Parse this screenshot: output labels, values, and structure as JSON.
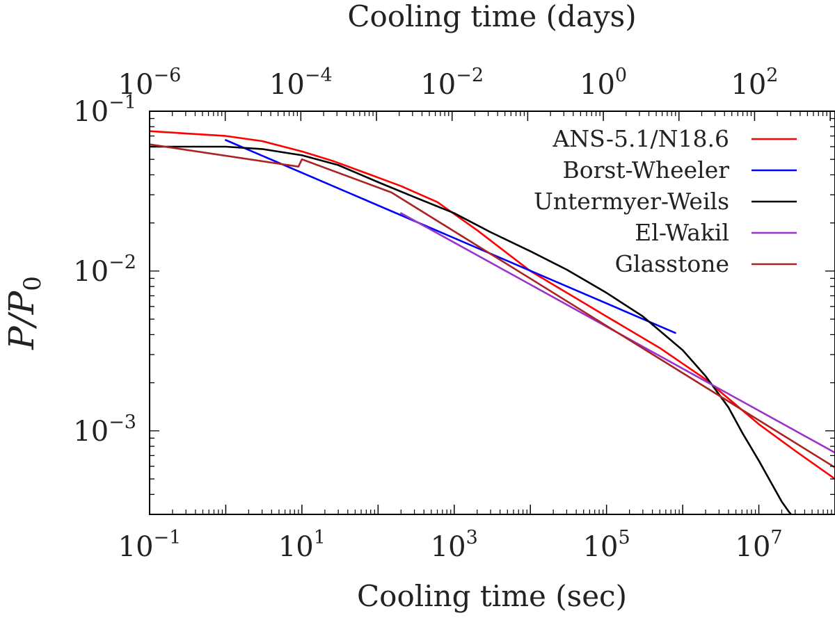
{
  "chart_data": {
    "type": "line",
    "xscale": "log",
    "yscale": "log",
    "xlabel": "Cooling time (sec)",
    "x2label": "Cooling time (days)",
    "ylabel_parts": {
      "main": "P/P",
      "sub": "0"
    },
    "xlim": [
      0.1,
      100000000
    ],
    "ylim": [
      0.0003,
      0.1
    ],
    "x2lim": [
      1e-06,
      1157
    ],
    "grid": false,
    "legend_position": "top-right",
    "xticks": [
      {
        "value": 0.1,
        "base": "10",
        "exp": "−1"
      },
      {
        "value": 10,
        "base": "10",
        "exp": "1"
      },
      {
        "value": 1000,
        "base": "10",
        "exp": "3"
      },
      {
        "value": 100000,
        "base": "10",
        "exp": "5"
      },
      {
        "value": 10000000,
        "base": "10",
        "exp": "7"
      }
    ],
    "x2ticks": [
      {
        "value": 1e-06,
        "base": "10",
        "exp": "−6"
      },
      {
        "value": 0.0001,
        "base": "10",
        "exp": "−4"
      },
      {
        "value": 0.01,
        "base": "10",
        "exp": "−2"
      },
      {
        "value": 1,
        "base": "10",
        "exp": "0"
      },
      {
        "value": 100,
        "base": "10",
        "exp": "2"
      }
    ],
    "yticks": [
      {
        "value": 0.1,
        "base": "10",
        "exp": "−1"
      },
      {
        "value": 0.01,
        "base": "10",
        "exp": "−2"
      },
      {
        "value": 0.001,
        "base": "10",
        "exp": "−3"
      }
    ],
    "series": [
      {
        "name": "ANS-5.1/N18.6",
        "color": "#ff0000",
        "x": [
          0.1,
          1,
          3,
          10,
          25,
          80,
          200,
          600,
          2000,
          10000,
          100000,
          500000,
          2000000,
          10000000,
          30000000,
          100000000
        ],
        "y": [
          0.075,
          0.07,
          0.065,
          0.056,
          0.049,
          0.04,
          0.034,
          0.027,
          0.018,
          0.01,
          0.0052,
          0.0033,
          0.0021,
          0.0011,
          0.00075,
          0.0005
        ]
      },
      {
        "name": "Borst-Wheeler",
        "color": "#0000ff",
        "x": [
          1,
          800000
        ],
        "y": [
          0.066,
          0.0041
        ]
      },
      {
        "name": "Untermyer-Weils",
        "color": "#000000",
        "x": [
          0.1,
          1,
          3,
          10,
          30,
          100,
          300,
          1000,
          3000,
          10000,
          30000,
          100000,
          300000,
          1000000,
          2000000,
          4000000,
          6000000,
          10000000,
          15000000,
          20000000,
          25000000,
          30000000
        ],
        "y": [
          0.06,
          0.06,
          0.058,
          0.053,
          0.046,
          0.036,
          0.029,
          0.023,
          0.0175,
          0.0133,
          0.0102,
          0.0073,
          0.0052,
          0.0032,
          0.0022,
          0.0014,
          0.00098,
          0.00065,
          0.00046,
          0.00036,
          0.00031,
          0.00028
        ]
      },
      {
        "name": "El-Wakil",
        "color": "#9933cc",
        "x": [
          200,
          100000000
        ],
        "y": [
          0.023,
          0.00073
        ]
      },
      {
        "name": "Glasstone",
        "color": "#aa2222",
        "x": [
          0.1,
          9,
          10,
          150,
          100000000
        ],
        "y": [
          0.062,
          0.045,
          0.05,
          0.031,
          0.00059
        ]
      }
    ]
  }
}
